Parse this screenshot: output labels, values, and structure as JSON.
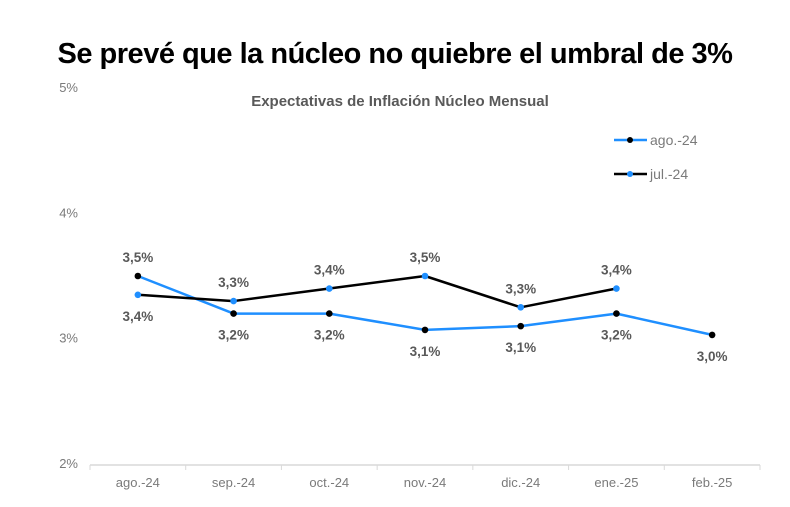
{
  "headline": "Se prevé que la núcleo no quiebre el umbral de 3%",
  "chart_data": {
    "type": "line",
    "title": "Expectativas de Inflación Núcleo Mensual",
    "xlabel": "",
    "ylabel": "",
    "categories": [
      "ago.-24",
      "sep.-24",
      "oct.-24",
      "nov.-24",
      "dic.-24",
      "ene.-25",
      "feb.-25"
    ],
    "ylim": [
      2,
      5
    ],
    "yticks": [
      2,
      3,
      4,
      5
    ],
    "ytick_labels": [
      "2%",
      "3%",
      "4%",
      "5%"
    ],
    "grid": false,
    "legend_position": "top-right",
    "series": [
      {
        "name": "ago.-24",
        "line_color": "#1f8fff",
        "marker_color": "#000000",
        "values": [
          3.5,
          3.2,
          3.2,
          3.07,
          3.1,
          3.2,
          3.03
        ],
        "labels": [
          "3,5%",
          "3,2%",
          "3,2%",
          "3,1%",
          "3,1%",
          "3,2%",
          "3,0%"
        ],
        "label_position": [
          "above",
          "below",
          "below",
          "below",
          "below",
          "below",
          "below"
        ]
      },
      {
        "name": "jul.-24",
        "line_color": "#000000",
        "marker_color": "#1f8fff",
        "values": [
          3.35,
          3.3,
          3.4,
          3.5,
          3.25,
          3.4,
          null
        ],
        "labels": [
          "3,4%",
          "3,3%",
          "3,4%",
          "3,5%",
          "3,3%",
          "3,4%",
          null
        ],
        "label_position": [
          "below",
          "above",
          "above",
          "above",
          "above",
          "above",
          null
        ]
      }
    ]
  }
}
